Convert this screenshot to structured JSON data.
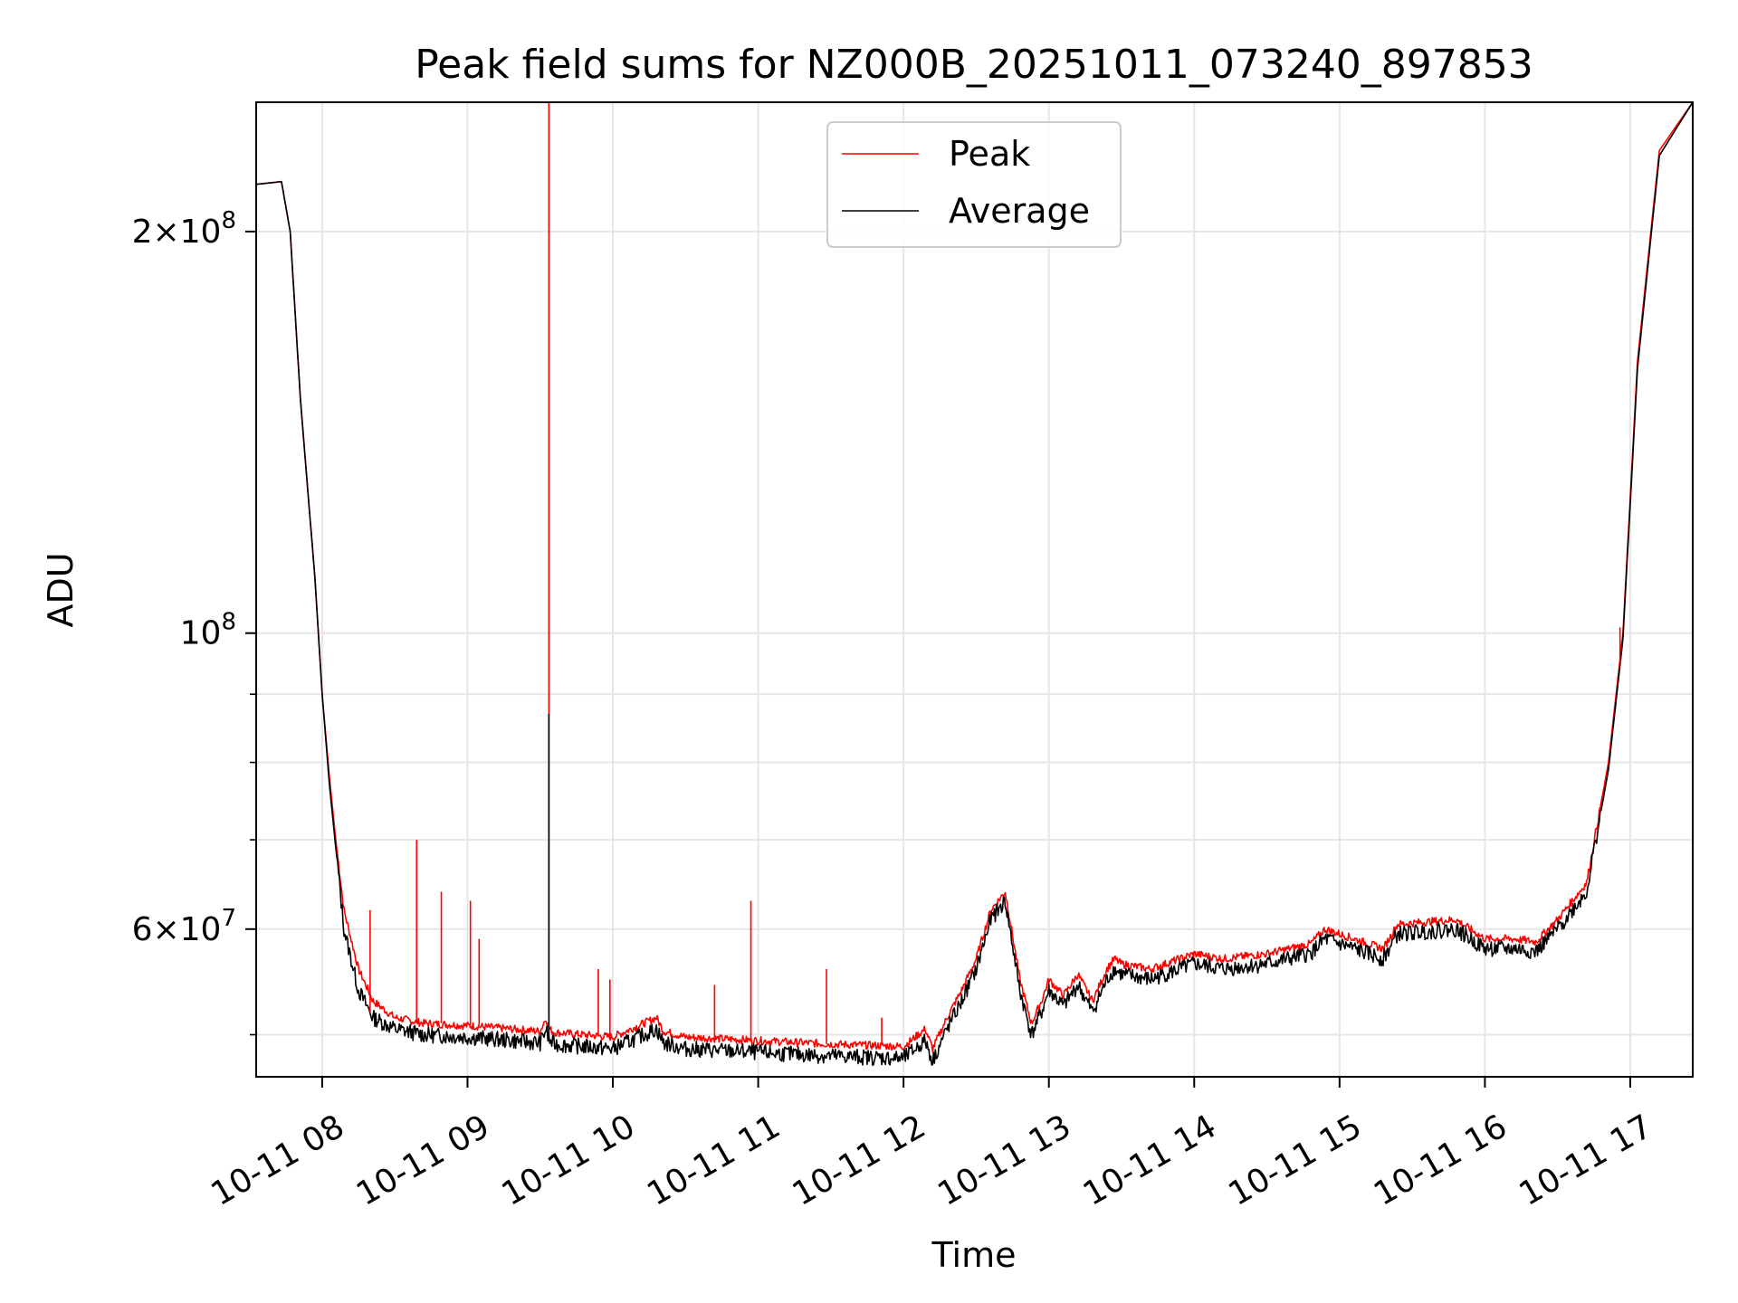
{
  "chart_data": {
    "type": "line",
    "title": "Peak field sums for NZ000B_20251011_073240_897853",
    "xlabel": "Time",
    "ylabel": "ADU",
    "y_scale": "log",
    "ylim": [
      46500000,
      250000000
    ],
    "xlim_hours": [
      7.546,
      17.43
    ],
    "grid": true,
    "legend_position": "upper center",
    "x_ticks": [
      {
        "value": 8,
        "label": "10-11 08"
      },
      {
        "value": 9,
        "label": "10-11 09"
      },
      {
        "value": 10,
        "label": "10-11 10"
      },
      {
        "value": 11,
        "label": "10-11 11"
      },
      {
        "value": 12,
        "label": "10-11 12"
      },
      {
        "value": 13,
        "label": "10-11 13"
      },
      {
        "value": 14,
        "label": "10-11 14"
      },
      {
        "value": 15,
        "label": "10-11 15"
      },
      {
        "value": 16,
        "label": "10-11 16"
      },
      {
        "value": 17,
        "label": "10-11 17"
      }
    ],
    "y_major_ticks": [
      {
        "value": 60000000,
        "base": "6",
        "exp": "7",
        "label": "6 × 10^7"
      },
      {
        "value": 100000000,
        "base": "",
        "exp": "8",
        "label": "10^8"
      },
      {
        "value": 200000000,
        "base": "2",
        "exp": "8",
        "label": "2 × 10^8"
      }
    ],
    "y_minor_ticks": [
      50000000,
      70000000,
      80000000,
      90000000
    ],
    "series": [
      {
        "name": "Peak",
        "color": "#ff0000",
        "x": [
          7.55,
          7.72,
          7.78,
          7.85,
          7.95,
          8.0,
          8.05,
          8.1,
          8.15,
          8.25,
          8.35,
          8.5,
          8.7,
          9.0,
          9.3,
          9.5,
          9.54,
          9.56,
          9.6,
          9.8,
          10.0,
          10.3,
          10.35,
          10.5,
          11.0,
          11.5,
          12.0,
          12.15,
          12.2,
          12.3,
          12.4,
          12.5,
          12.6,
          12.7,
          12.8,
          12.88,
          12.95,
          13.0,
          13.1,
          13.2,
          13.3,
          13.4,
          13.45,
          13.5,
          13.7,
          14.0,
          14.2,
          14.5,
          14.8,
          14.9,
          15.0,
          15.3,
          15.4,
          15.8,
          16.0,
          16.2,
          16.35,
          16.5,
          16.7,
          16.85,
          16.95,
          17.05,
          17.2,
          17.43
        ],
        "values": [
          217000000,
          218000000,
          200000000,
          150000000,
          110000000,
          90000000,
          78000000,
          69000000,
          62000000,
          56000000,
          53000000,
          51500000,
          51000000,
          50800000,
          50500000,
          50300000,
          51500000,
          50500000,
          50200000,
          50000000,
          49800000,
          51500000,
          50300000,
          49800000,
          49500000,
          49200000,
          49000000,
          50500000,
          48800000,
          51500000,
          54000000,
          57000000,
          62000000,
          64000000,
          55000000,
          51000000,
          53000000,
          55000000,
          53500000,
          55500000,
          53000000,
          56000000,
          57000000,
          56500000,
          56000000,
          57500000,
          57000000,
          57500000,
          58500000,
          60000000,
          59500000,
          58000000,
          60500000,
          61000000,
          59000000,
          59000000,
          58700000,
          61000000,
          65000000,
          80000000,
          100000000,
          160000000,
          230000000,
          250000000
        ]
      },
      {
        "name": "Average",
        "color": "#000000",
        "x": [
          7.55,
          7.72,
          7.78,
          7.85,
          7.95,
          8.0,
          8.05,
          8.1,
          8.15,
          8.25,
          8.35,
          8.5,
          8.7,
          9.0,
          9.3,
          9.5,
          9.54,
          9.56,
          9.6,
          9.8,
          10.0,
          10.3,
          10.35,
          10.5,
          11.0,
          11.5,
          12.0,
          12.15,
          12.2,
          12.3,
          12.4,
          12.5,
          12.6,
          12.7,
          12.8,
          12.88,
          12.95,
          13.0,
          13.1,
          13.2,
          13.3,
          13.4,
          13.45,
          13.5,
          13.7,
          14.0,
          14.2,
          14.5,
          14.8,
          14.9,
          15.0,
          15.3,
          15.4,
          15.8,
          16.0,
          16.2,
          16.35,
          16.5,
          16.7,
          16.85,
          16.95,
          17.05,
          17.2,
          17.43
        ],
        "values": [
          217000000,
          218000000,
          200000000,
          150000000,
          110000000,
          90000000,
          77000000,
          68000000,
          60000000,
          54000000,
          51500000,
          50500000,
          50000000,
          49800000,
          49500000,
          49300000,
          50500000,
          49500000,
          49200000,
          49000000,
          48800000,
          50500000,
          49300000,
          48800000,
          48500000,
          48200000,
          48000000,
          49500000,
          47800000,
          50500000,
          53000000,
          56000000,
          61000000,
          63000000,
          54000000,
          50000000,
          52000000,
          54000000,
          52500000,
          54500000,
          52000000,
          55000000,
          56000000,
          55500000,
          55000000,
          56500000,
          56000000,
          56500000,
          57500000,
          59000000,
          58500000,
          57000000,
          59500000,
          60000000,
          58000000,
          58000000,
          57700000,
          60000000,
          64000000,
          79000000,
          99000000,
          158000000,
          228000000,
          250000000
        ]
      }
    ],
    "spikes": [
      {
        "series": "Peak",
        "x": 9.56,
        "values": [
          50500000,
          250000000
        ]
      },
      {
        "series": "Average",
        "x": 9.56,
        "values": [
          49500000,
          87000000
        ]
      },
      {
        "series": "Peak",
        "x": 8.33,
        "values": [
          52000000,
          62000000
        ]
      },
      {
        "series": "Peak",
        "x": 8.65,
        "values": [
          51000000,
          70000000
        ]
      },
      {
        "series": "Peak",
        "x": 8.82,
        "values": [
          51000000,
          64000000
        ]
      },
      {
        "series": "Peak",
        "x": 9.02,
        "values": [
          50800000,
          63000000
        ]
      },
      {
        "series": "Peak",
        "x": 9.08,
        "values": [
          50800000,
          59000000
        ]
      },
      {
        "series": "Peak",
        "x": 9.9,
        "values": [
          49900000,
          56000000
        ]
      },
      {
        "series": "Peak",
        "x": 9.98,
        "values": [
          49800000,
          55000000
        ]
      },
      {
        "series": "Peak",
        "x": 10.7,
        "values": [
          49700000,
          54500000
        ]
      },
      {
        "series": "Peak",
        "x": 10.95,
        "values": [
          49500000,
          63000000
        ]
      },
      {
        "series": "Peak",
        "x": 11.47,
        "values": [
          49200000,
          56000000
        ]
      },
      {
        "series": "Peak",
        "x": 11.85,
        "values": [
          49100000,
          51500000
        ]
      },
      {
        "series": "Peak",
        "x": 16.93,
        "values": [
          95000000,
          101000000
        ]
      }
    ],
    "legend": [
      "Peak",
      "Average"
    ]
  }
}
